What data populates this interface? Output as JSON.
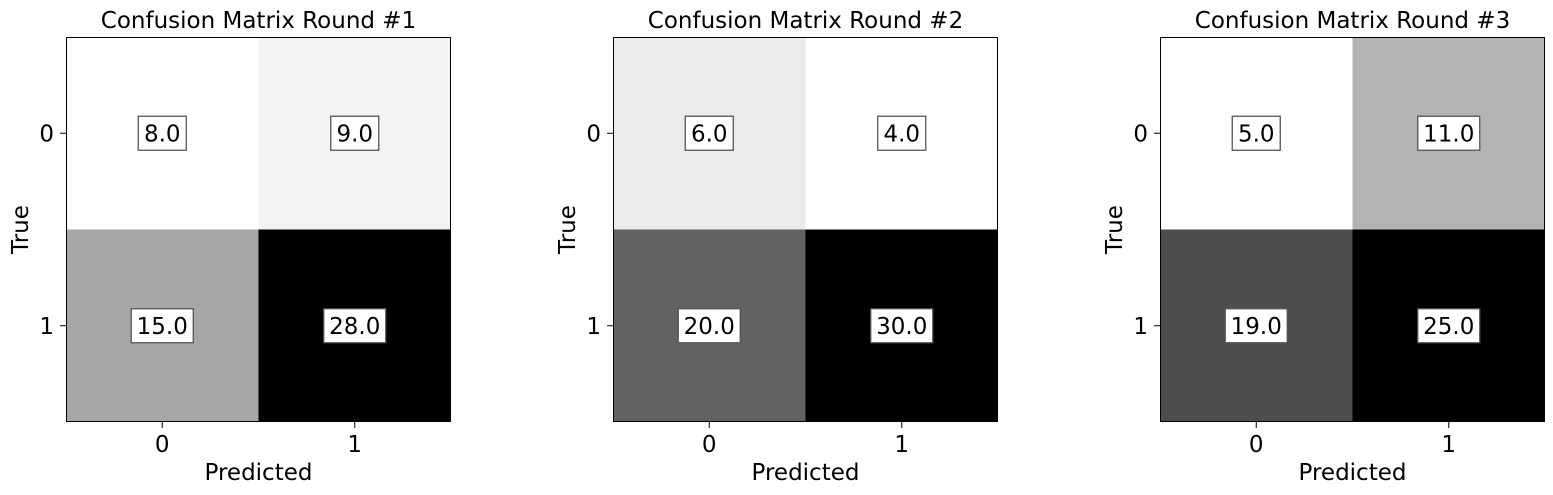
{
  "chart_data": [
    {
      "type": "heatmap",
      "title": "Confusion Matrix Round #1",
      "xlabel": "Predicted",
      "ylabel": "True",
      "x_categories": [
        "0",
        "1"
      ],
      "y_categories": [
        "0",
        "1"
      ],
      "values": [
        [
          8.0,
          9.0
        ],
        [
          15.0,
          28.0
        ]
      ],
      "value_labels": [
        [
          "8.0",
          "9.0"
        ],
        [
          "15.0",
          "28.0"
        ]
      ],
      "colormap": "greys",
      "grid": false
    },
    {
      "type": "heatmap",
      "title": "Confusion Matrix Round #2",
      "xlabel": "Predicted",
      "ylabel": "True",
      "x_categories": [
        "0",
        "1"
      ],
      "y_categories": [
        "0",
        "1"
      ],
      "values": [
        [
          6.0,
          4.0
        ],
        [
          20.0,
          30.0
        ]
      ],
      "value_labels": [
        [
          "6.0",
          "4.0"
        ],
        [
          "20.0",
          "30.0"
        ]
      ],
      "colormap": "greys",
      "grid": false
    },
    {
      "type": "heatmap",
      "title": "Confusion Matrix Round #3",
      "xlabel": "Predicted",
      "ylabel": "True",
      "x_categories": [
        "0",
        "1"
      ],
      "y_categories": [
        "0",
        "1"
      ],
      "values": [
        [
          5.0,
          11.0
        ],
        [
          19.0,
          25.0
        ]
      ],
      "value_labels": [
        [
          "5.0",
          "11.0"
        ],
        [
          "19.0",
          "25.0"
        ]
      ],
      "colormap": "greys",
      "grid": false
    }
  ]
}
